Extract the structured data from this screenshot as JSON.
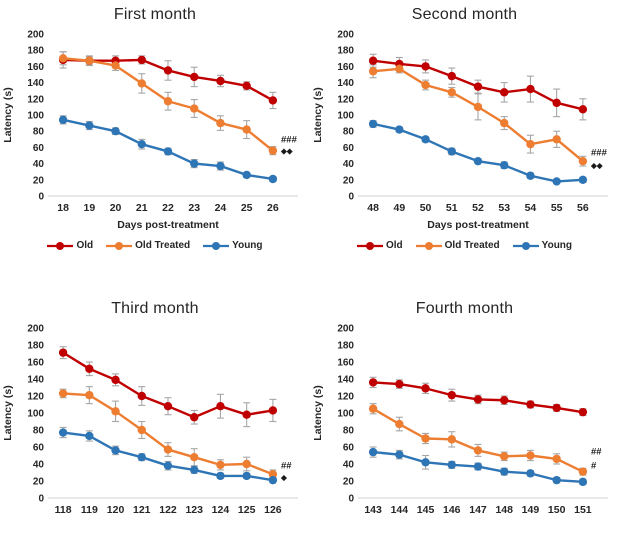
{
  "page": {
    "background": "#FFFFFF"
  },
  "colors": {
    "old": "#C00000",
    "old_treated": "#ED7D31",
    "young": "#2E75B6",
    "error_bar": "#A6A6A6",
    "axis_text": "#262626",
    "baseline": "#D9D9D9",
    "annotation": "#1A1A1A"
  },
  "legend": {
    "position": "bottom",
    "items": [
      {
        "label": "Old",
        "color": "#C00000"
      },
      {
        "label": "Old Treated",
        "color": "#ED7D31"
      },
      {
        "label": "Young",
        "color": "#2E75B6"
      }
    ]
  },
  "chart_data": [
    {
      "type": "line",
      "title": "First month",
      "xlabel": "Days post-treatment",
      "ylabel": "Latency (s)",
      "ylim": [
        0,
        200
      ],
      "ytick_step": 20,
      "grid": false,
      "show_legend": true,
      "x": [
        18,
        19,
        20,
        21,
        22,
        23,
        24,
        25,
        26
      ],
      "series": [
        {
          "name": "Old",
          "color": "#C00000",
          "values": [
            168,
            167,
            167,
            168,
            155,
            147,
            142,
            136,
            118
          ],
          "errors": [
            10,
            6,
            6,
            5,
            12,
            12,
            7,
            5,
            10
          ]
        },
        {
          "name": "Old Treated",
          "color": "#ED7D31",
          "values": [
            170,
            167,
            161,
            139,
            117,
            108,
            90,
            82,
            56
          ],
          "errors": [
            8,
            5,
            6,
            12,
            11,
            11,
            9,
            11,
            5
          ]
        },
        {
          "name": "Young",
          "color": "#2E75B6",
          "values": [
            94,
            87,
            80,
            64,
            55,
            40,
            37,
            26,
            21
          ],
          "errors": [
            5,
            5,
            4,
            6,
            4,
            5,
            5,
            3,
            3
          ]
        }
      ],
      "annotations": [
        {
          "text": "###",
          "y": 70
        },
        {
          "text": "◆◆",
          "y": 56
        }
      ]
    },
    {
      "type": "line",
      "title": "Second month",
      "xlabel": "Days post-treatment",
      "ylabel": "Latency (s)",
      "ylim": [
        0,
        200
      ],
      "ytick_step": 20,
      "grid": false,
      "show_legend": true,
      "x": [
        48,
        49,
        50,
        51,
        52,
        53,
        54,
        55,
        56
      ],
      "series": [
        {
          "name": "Old",
          "color": "#C00000",
          "values": [
            167,
            163,
            160,
            148,
            135,
            128,
            132,
            115,
            107
          ],
          "errors": [
            8,
            8,
            8,
            10,
            8,
            12,
            16,
            17,
            13
          ]
        },
        {
          "name": "Old Treated",
          "color": "#ED7D31",
          "values": [
            154,
            157,
            137,
            128,
            110,
            90,
            64,
            70,
            43
          ],
          "errors": [
            8,
            5,
            6,
            6,
            16,
            8,
            11,
            10,
            6
          ]
        },
        {
          "name": "Young",
          "color": "#2E75B6",
          "values": [
            89,
            82,
            70,
            55,
            43,
            38,
            25,
            18,
            20
          ],
          "errors": [
            4,
            3,
            3,
            4,
            3,
            4,
            3,
            2,
            3
          ]
        }
      ],
      "annotations": [
        {
          "text": "###",
          "y": 54
        },
        {
          "text": "◆◆",
          "y": 38
        }
      ]
    },
    {
      "type": "line",
      "title": "Third month",
      "xlabel": "",
      "ylabel": "Latency (s)",
      "ylim": [
        0,
        200
      ],
      "ytick_step": 20,
      "grid": false,
      "show_legend": false,
      "x": [
        118,
        119,
        120,
        121,
        122,
        123,
        124,
        125,
        126
      ],
      "series": [
        {
          "name": "Old",
          "color": "#C00000",
          "values": [
            171,
            152,
            139,
            120,
            108,
            95,
            108,
            98,
            103
          ],
          "errors": [
            7,
            8,
            7,
            11,
            10,
            8,
            14,
            14,
            13
          ]
        },
        {
          "name": "Old Treated",
          "color": "#ED7D31",
          "values": [
            123,
            121,
            102,
            80,
            57,
            48,
            39,
            40,
            28
          ],
          "errors": [
            5,
            10,
            12,
            10,
            8,
            10,
            6,
            8,
            5
          ]
        },
        {
          "name": "Young",
          "color": "#2E75B6",
          "values": [
            77,
            73,
            56,
            48,
            38,
            33,
            26,
            26,
            21
          ],
          "errors": [
            6,
            6,
            5,
            4,
            5,
            4,
            3,
            3,
            3
          ]
        }
      ],
      "annotations": [
        {
          "text": "##",
          "y": 38
        },
        {
          "text": "◆",
          "y": 25
        }
      ]
    },
    {
      "type": "line",
      "title": "Fourth month",
      "xlabel": "",
      "ylabel": "Latency (s)",
      "ylim": [
        0,
        200
      ],
      "ytick_step": 20,
      "grid": false,
      "show_legend": false,
      "x": [
        143,
        144,
        145,
        146,
        147,
        148,
        149,
        150,
        151
      ],
      "series": [
        {
          "name": "Old",
          "color": "#C00000",
          "values": [
            136,
            134,
            129,
            121,
            116,
            115,
            110,
            106,
            101
          ],
          "errors": [
            6,
            5,
            6,
            7,
            5,
            5,
            4,
            4,
            4
          ]
        },
        {
          "name": "Old Treated",
          "color": "#ED7D31",
          "values": [
            105,
            87,
            70,
            69,
            56,
            49,
            50,
            46,
            31
          ],
          "errors": [
            6,
            8,
            6,
            9,
            7,
            5,
            6,
            6,
            4
          ]
        },
        {
          "name": "Young",
          "color": "#2E75B6",
          "values": [
            54,
            51,
            42,
            39,
            37,
            31,
            29,
            21,
            19
          ],
          "errors": [
            6,
            5,
            8,
            4,
            4,
            4,
            3,
            3,
            3
          ]
        }
      ],
      "annotations": [
        {
          "text": "##",
          "y": 55
        },
        {
          "text": "#",
          "y": 38
        }
      ]
    }
  ]
}
